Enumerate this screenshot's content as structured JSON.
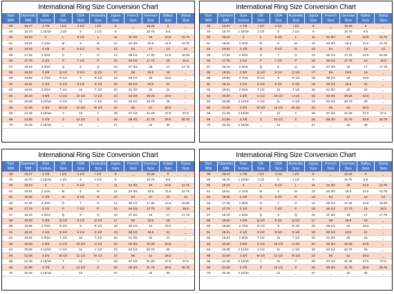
{
  "page": {
    "charts": [
      {
        "title": "International Ring Size Conversion Chart"
      },
      {
        "title": "International Ring Size Conversion Chart"
      },
      {
        "title": "International Ring Size Conversion Chart"
      },
      {
        "title": "International Ring Size Conversion Chart"
      }
    ]
  },
  "table": {
    "headers": [
      "Size\nMM",
      "Diameter\nMM",
      "Size\nInches",
      "UK\nSize",
      "USA\nSize",
      "Australia\nSize",
      "Japan\nSize",
      "French\nSize",
      "German\nSize",
      "Italian\nSize",
      "Swiss Size"
    ],
    "rows": [
      [
        "48",
        "15.27",
        "1 7/8",
        "I 1/2",
        "4 1/2",
        "I 1/2",
        "8",
        "_",
        "15.25",
        "8",
        "_"
      ],
      [
        "49",
        "15.70",
        "1 15/16",
        "J 1/2",
        "5",
        "J 1/2",
        "9",
        "_",
        "15.75",
        "9.5",
        "_"
      ],
      [
        "50",
        "16.10",
        "2",
        "L",
        "5 1/2",
        "L",
        "11",
        "51 3/4",
        "16",
        "10.5",
        "11.75"
      ],
      [
        "51",
        "16.51",
        "2 1/16",
        "M",
        "6",
        "M",
        "12",
        "52 3/4",
        "16.5",
        "11.5",
        "12.75"
      ],
      [
        "52",
        "16.92",
        "2 1/8",
        "N",
        "6 1/2",
        "N",
        "13",
        "54",
        "17",
        "13",
        "14"
      ],
      [
        "55",
        "17.35",
        "2 3/16",
        "O",
        "7",
        "O",
        "14",
        "55 1/4",
        "17.25",
        "14.5",
        "15.25"
      ],
      [
        "56",
        "17.75",
        "2 1/4",
        "P",
        "7 1/2",
        "P",
        "15",
        "56 1/2",
        "17.75",
        "16",
        "16.5"
      ],
      [
        "57",
        "18.19",
        "2 5/16",
        "Q",
        "8",
        "Q",
        "16",
        "57 3/4",
        "18",
        "17",
        "17.75"
      ],
      [
        "58",
        "18.53",
        "2 3/8",
        "Q 1/2",
        "8 1/2",
        "Q 1/2",
        "17",
        "58",
        "18.5",
        "18",
        "_"
      ],
      [
        "59",
        "18.89",
        "2 7/16",
        "R 1/2",
        "9",
        "R 1/2",
        "18",
        "59 1/4",
        "19",
        "19.5",
        "_"
      ],
      [
        "61",
        "19.41",
        "2 1/2",
        "S 1/2",
        "9 1/2",
        "S 1/2",
        "19",
        "60 1/2",
        "19.5",
        "21",
        "_"
      ],
      [
        "62",
        "19.84",
        "2 9/16",
        "T 1/2",
        "10",
        "T 1/2",
        "20",
        "61 3/4",
        "20",
        "22",
        "_"
      ],
      [
        "63",
        "20.20",
        "2 5/8",
        "U 1/2",
        "10 1/2",
        "U 1/2",
        "22",
        "62 3/4",
        "20.25",
        "23.5",
        "_"
      ],
      [
        "64",
        "20.68",
        "2 11/16",
        "V 1/2",
        "11",
        "V 1/2",
        "23",
        "64 1/4",
        "20.75",
        "25",
        "_"
      ],
      [
        "66",
        "21.08",
        "2 3/4",
        "W 1/2",
        "11 1/2",
        "W 1/2",
        "24",
        "66",
        "21",
        "26.5",
        "_"
      ],
      [
        "68",
        "21.49",
        "2 13/16",
        "Y",
        "12",
        "Y",
        "25",
        "67 1/2",
        "21.25",
        "27.5",
        "27.5"
      ],
      [
        "69",
        "21.89",
        "2 7/8",
        "Z",
        "12 1/2",
        "Z",
        "26",
        "68 3/4",
        "21.75",
        "28.5",
        "28.75"
      ],
      [
        "70",
        "22.33",
        "2 15/16",
        "_",
        "13",
        "_",
        "27",
        "_",
        "22",
        "30",
        "_"
      ]
    ]
  }
}
